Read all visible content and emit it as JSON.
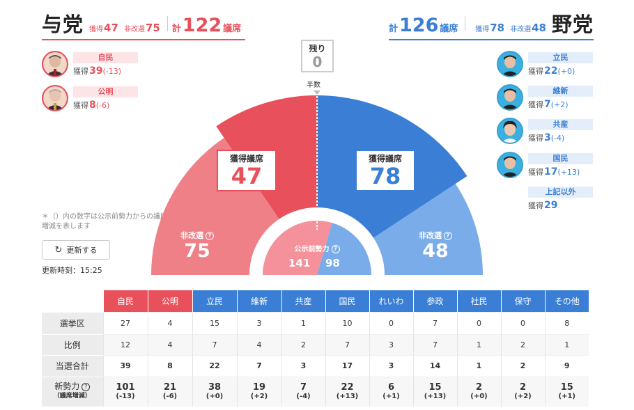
{
  "ruling": {
    "title": "与党",
    "won_label": "獲得",
    "won": "47",
    "unelected_label": "非改選",
    "unelected": "75",
    "total_label": "計",
    "total": "122",
    "unit": "議席"
  },
  "opposition": {
    "title": "野党",
    "won_label": "獲得",
    "won": "78",
    "unelected_label": "非改選",
    "unelected": "48",
    "total_label": "計",
    "total": "126",
    "unit": "議席"
  },
  "ruling_parties": [
    {
      "name": "自民",
      "won_label": "獲得",
      "won": "39",
      "diff": "(-13)"
    },
    {
      "name": "公明",
      "won_label": "獲得",
      "won": "8",
      "diff": "(-6)"
    }
  ],
  "opposition_parties": [
    {
      "name": "立民",
      "won_label": "獲得",
      "won": "22",
      "diff": "(+0)"
    },
    {
      "name": "維新",
      "won_label": "獲得",
      "won": "7",
      "diff": "(+2)"
    },
    {
      "name": "共産",
      "won_label": "獲得",
      "won": "3",
      "diff": "(-4)"
    },
    {
      "name": "国民",
      "won_label": "獲得",
      "won": "17",
      "diff": "(+13)"
    },
    {
      "name": "上記以外",
      "won_label": "獲得",
      "won": "29",
      "diff": ""
    }
  ],
  "note": "＊（）内の数字は公示前勢力からの議席増減を表します",
  "refresh_label": "更新する",
  "update_time": "更新時刻：15:25",
  "remaining": {
    "label": "残り",
    "value": "0"
  },
  "half_label": "半数",
  "chart": {
    "won_label": "獲得議席",
    "ruling_won": "47",
    "opposition_won": "78",
    "unelected_label": "非改選",
    "ruling_unelected": "75",
    "opposition_unelected": "48",
    "koji_label": "公示前勢力",
    "koji_ruling": "141",
    "koji_opposition": "98",
    "qmark": "?",
    "colors": {
      "ruling_won": "#e8505b",
      "ruling_unelected": "#f08088",
      "ruling_koji": "#f4919a",
      "opposition_won": "#3a7fd5",
      "opposition_unelected": "#7aacea",
      "opposition_koji": "#7aacea"
    }
  },
  "table": {
    "headers": [
      "自民",
      "公明",
      "立民",
      "維新",
      "共産",
      "国民",
      "れいわ",
      "参政",
      "社民",
      "保守",
      "その他"
    ],
    "header_colors": [
      "#e8505b",
      "#e8505b",
      "#3a7fd5",
      "#3a7fd5",
      "#3a7fd5",
      "#3a7fd5",
      "#3a7fd5",
      "#3a7fd5",
      "#3a7fd5",
      "#3a7fd5",
      "#3a7fd5"
    ],
    "rows": {
      "district": {
        "label": "選挙区",
        "values": [
          "27",
          "4",
          "15",
          "3",
          "1",
          "10",
          "0",
          "7",
          "0",
          "0",
          "8"
        ]
      },
      "pr": {
        "label": "比例",
        "values": [
          "12",
          "4",
          "7",
          "4",
          "2",
          "7",
          "3",
          "7",
          "1",
          "2",
          "1"
        ]
      },
      "total": {
        "label": "当選合計",
        "values": [
          "39",
          "8",
          "22",
          "7",
          "3",
          "17",
          "3",
          "14",
          "1",
          "2",
          "9"
        ]
      },
      "new_power": {
        "label": "新勢力",
        "sublabel": "（議席増減）",
        "values": [
          "101",
          "21",
          "38",
          "19",
          "7",
          "22",
          "6",
          "15",
          "2",
          "2",
          "15"
        ],
        "diffs": [
          "(-13)",
          "(-6)",
          "(+0)",
          "(+2)",
          "(-4)",
          "(+13)",
          "(+1)",
          "(+13)",
          "(+0)",
          "(+2)",
          "(+1)"
        ]
      }
    }
  }
}
